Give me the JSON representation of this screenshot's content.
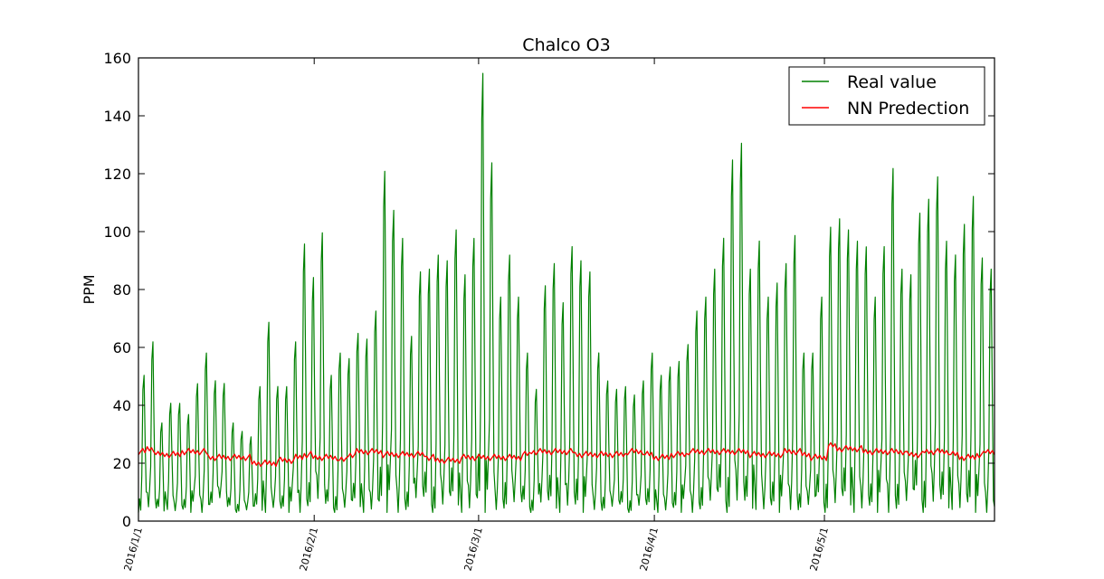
{
  "chart_data": {
    "type": "line",
    "title": "Chalco O3",
    "xlabel": "",
    "ylabel": "PPM",
    "ylim": [
      0,
      160
    ],
    "yticks": [
      "0",
      "20",
      "40",
      "60",
      "80",
      "100",
      "120",
      "140",
      "160"
    ],
    "xticks": [
      {
        "label": "2016/1/1",
        "date": "2016-01-01"
      },
      {
        "label": "2016/2/1",
        "date": "2016-02-01"
      },
      {
        "label": "2016/3/1",
        "date": "2016-03-01"
      },
      {
        "label": "2016/4/1",
        "date": "2016-04-01"
      },
      {
        "label": "2016/5/1",
        "date": "2016-05-01"
      }
    ],
    "xlim": [
      "2016-01-01",
      "2016-05-31"
    ],
    "grid": false,
    "legend": "top-right",
    "series": [
      {
        "name": "Real value",
        "color": "#008000",
        "daily_max": [
          52,
          64,
          35,
          42,
          42,
          38,
          49,
          60,
          50,
          49,
          35,
          32,
          30,
          48,
          71,
          48,
          48,
          64,
          99,
          87,
          103,
          52,
          60,
          58,
          67,
          65,
          75,
          125,
          111,
          101,
          66,
          89,
          90,
          95,
          93,
          104,
          88,
          101,
          160,
          128,
          80,
          95,
          80,
          60,
          47,
          84,
          92,
          78,
          98,
          93,
          89,
          60,
          50,
          47,
          48,
          45,
          50,
          60,
          52,
          55,
          57,
          63,
          75,
          80,
          90,
          101,
          129,
          135,
          90,
          100,
          80,
          85,
          92,
          102,
          60,
          60,
          80,
          105,
          108,
          104,
          100,
          98,
          80,
          98,
          126,
          90,
          88,
          110,
          115,
          123,
          100,
          95,
          106,
          116,
          94,
          90,
          67
        ],
        "daily_min": [
          3,
          3,
          3,
          4,
          3,
          3,
          4,
          3,
          5,
          6,
          3,
          3,
          3,
          3,
          3,
          4,
          3,
          3,
          3,
          4,
          3,
          3,
          3,
          3,
          4,
          3,
          3,
          3,
          4,
          3,
          3,
          4,
          3,
          3,
          3,
          4,
          3,
          3,
          3,
          3,
          4,
          3,
          3,
          3,
          3,
          4,
          3,
          3,
          4,
          3,
          3,
          4,
          3,
          3,
          3,
          3,
          4,
          3,
          3,
          3,
          3,
          4,
          3,
          3,
          3,
          4,
          3,
          3,
          3,
          4,
          3,
          3,
          3,
          4,
          3,
          3,
          4,
          3,
          3,
          4,
          3,
          3,
          3,
          4,
          3,
          3,
          3,
          4,
          3,
          3,
          3,
          4,
          3,
          3,
          3,
          3,
          4
        ]
      },
      {
        "name": "NN Predection",
        "color": "#ff0000",
        "daily_level": [
          24,
          25,
          23,
          23,
          23,
          24,
          24,
          24,
          22,
          22,
          22,
          22,
          22,
          20,
          20,
          20,
          21,
          21,
          22,
          23,
          22,
          22,
          22,
          21,
          23,
          24,
          24,
          24,
          23,
          23,
          23,
          23,
          23,
          22,
          21,
          21,
          21,
          22,
          22,
          22,
          22,
          22,
          22,
          22,
          23,
          24,
          24,
          24,
          24,
          24,
          23,
          23,
          23,
          23,
          23,
          23,
          24,
          24,
          23,
          22,
          22,
          23,
          23,
          24,
          24,
          24,
          24,
          24,
          24,
          24,
          23,
          23,
          23,
          23,
          24,
          24,
          23,
          22,
          22,
          26,
          25,
          25,
          25,
          24,
          24,
          24,
          24,
          24,
          23,
          23,
          24,
          24,
          24,
          23,
          22,
          22,
          23,
          24,
          24
        ]
      }
    ]
  }
}
